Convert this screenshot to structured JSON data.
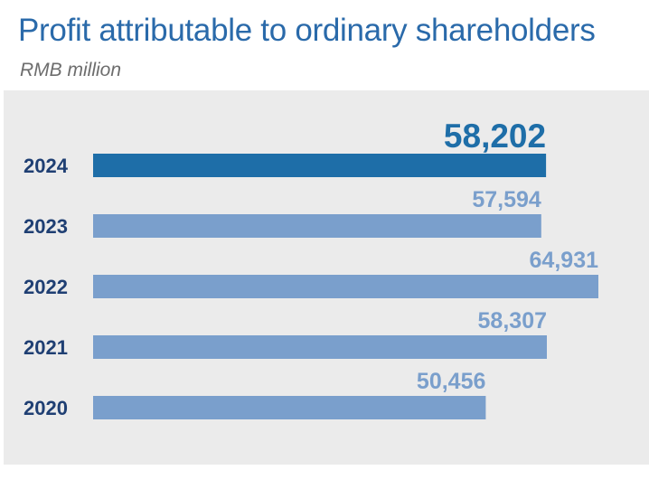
{
  "title": "Profit attributable to ordinary shareholders",
  "subtitle": "RMB million",
  "colors": {
    "title": "#2a6aaa",
    "highlight": "#1e6ea8",
    "bar": "#7a9fcc",
    "panel": "#ebebeb",
    "year_label": "#1f3f73"
  },
  "chart_data": {
    "type": "bar",
    "orientation": "horizontal",
    "categories": [
      "2024",
      "2023",
      "2022",
      "2021",
      "2020"
    ],
    "values": [
      58202,
      57594,
      64931,
      58307,
      50456
    ],
    "value_labels": [
      "58,202",
      "57,594",
      "64,931",
      "58,307",
      "50,456"
    ],
    "highlight": "2024",
    "title": "Profit attributable to ordinary shareholders",
    "unit": "RMB million",
    "xlabel": "",
    "ylabel": "",
    "xlim": [
      0,
      64931
    ],
    "grid": false,
    "legend": "none"
  }
}
